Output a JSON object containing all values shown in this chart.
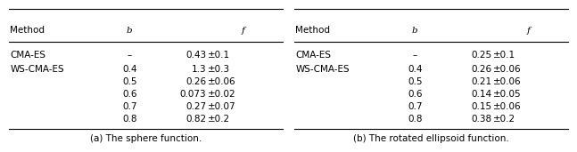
{
  "table_a": {
    "caption": "(a) The sphere function.",
    "headers": [
      "Method",
      "b",
      "f"
    ],
    "rows": [
      [
        "CMA-ES",
        "–",
        "0.43",
        "±0.1"
      ],
      [
        "WS-CMA-ES",
        "0.4",
        "1.3",
        "±0.3"
      ],
      [
        "",
        "0.5",
        "0.26",
        "±0.06"
      ],
      [
        "",
        "0.6",
        "0.073",
        "±0.02"
      ],
      [
        "",
        "0.7",
        "0.27",
        "±0.07"
      ],
      [
        "",
        "0.8",
        "0.82",
        "±0.2"
      ]
    ]
  },
  "table_b": {
    "caption": "(b) The rotated ellipsoid function.",
    "headers": [
      "Method",
      "b",
      "f"
    ],
    "rows": [
      [
        "CMA-ES",
        "–",
        "0.25",
        "±0.1"
      ],
      [
        "WS-CMA-ES",
        "0.4",
        "0.26",
        "±0.06"
      ],
      [
        "",
        "0.5",
        "0.21",
        "±0.06"
      ],
      [
        "",
        "0.6",
        "0.14",
        "±0.05"
      ],
      [
        "",
        "0.7",
        "0.15",
        "±0.06"
      ],
      [
        "",
        "0.8",
        "0.38",
        "±0.2"
      ]
    ]
  },
  "bg_color": "#ffffff",
  "text_color": "#000000",
  "font_size": 7.5,
  "caption_font_size": 7.5
}
